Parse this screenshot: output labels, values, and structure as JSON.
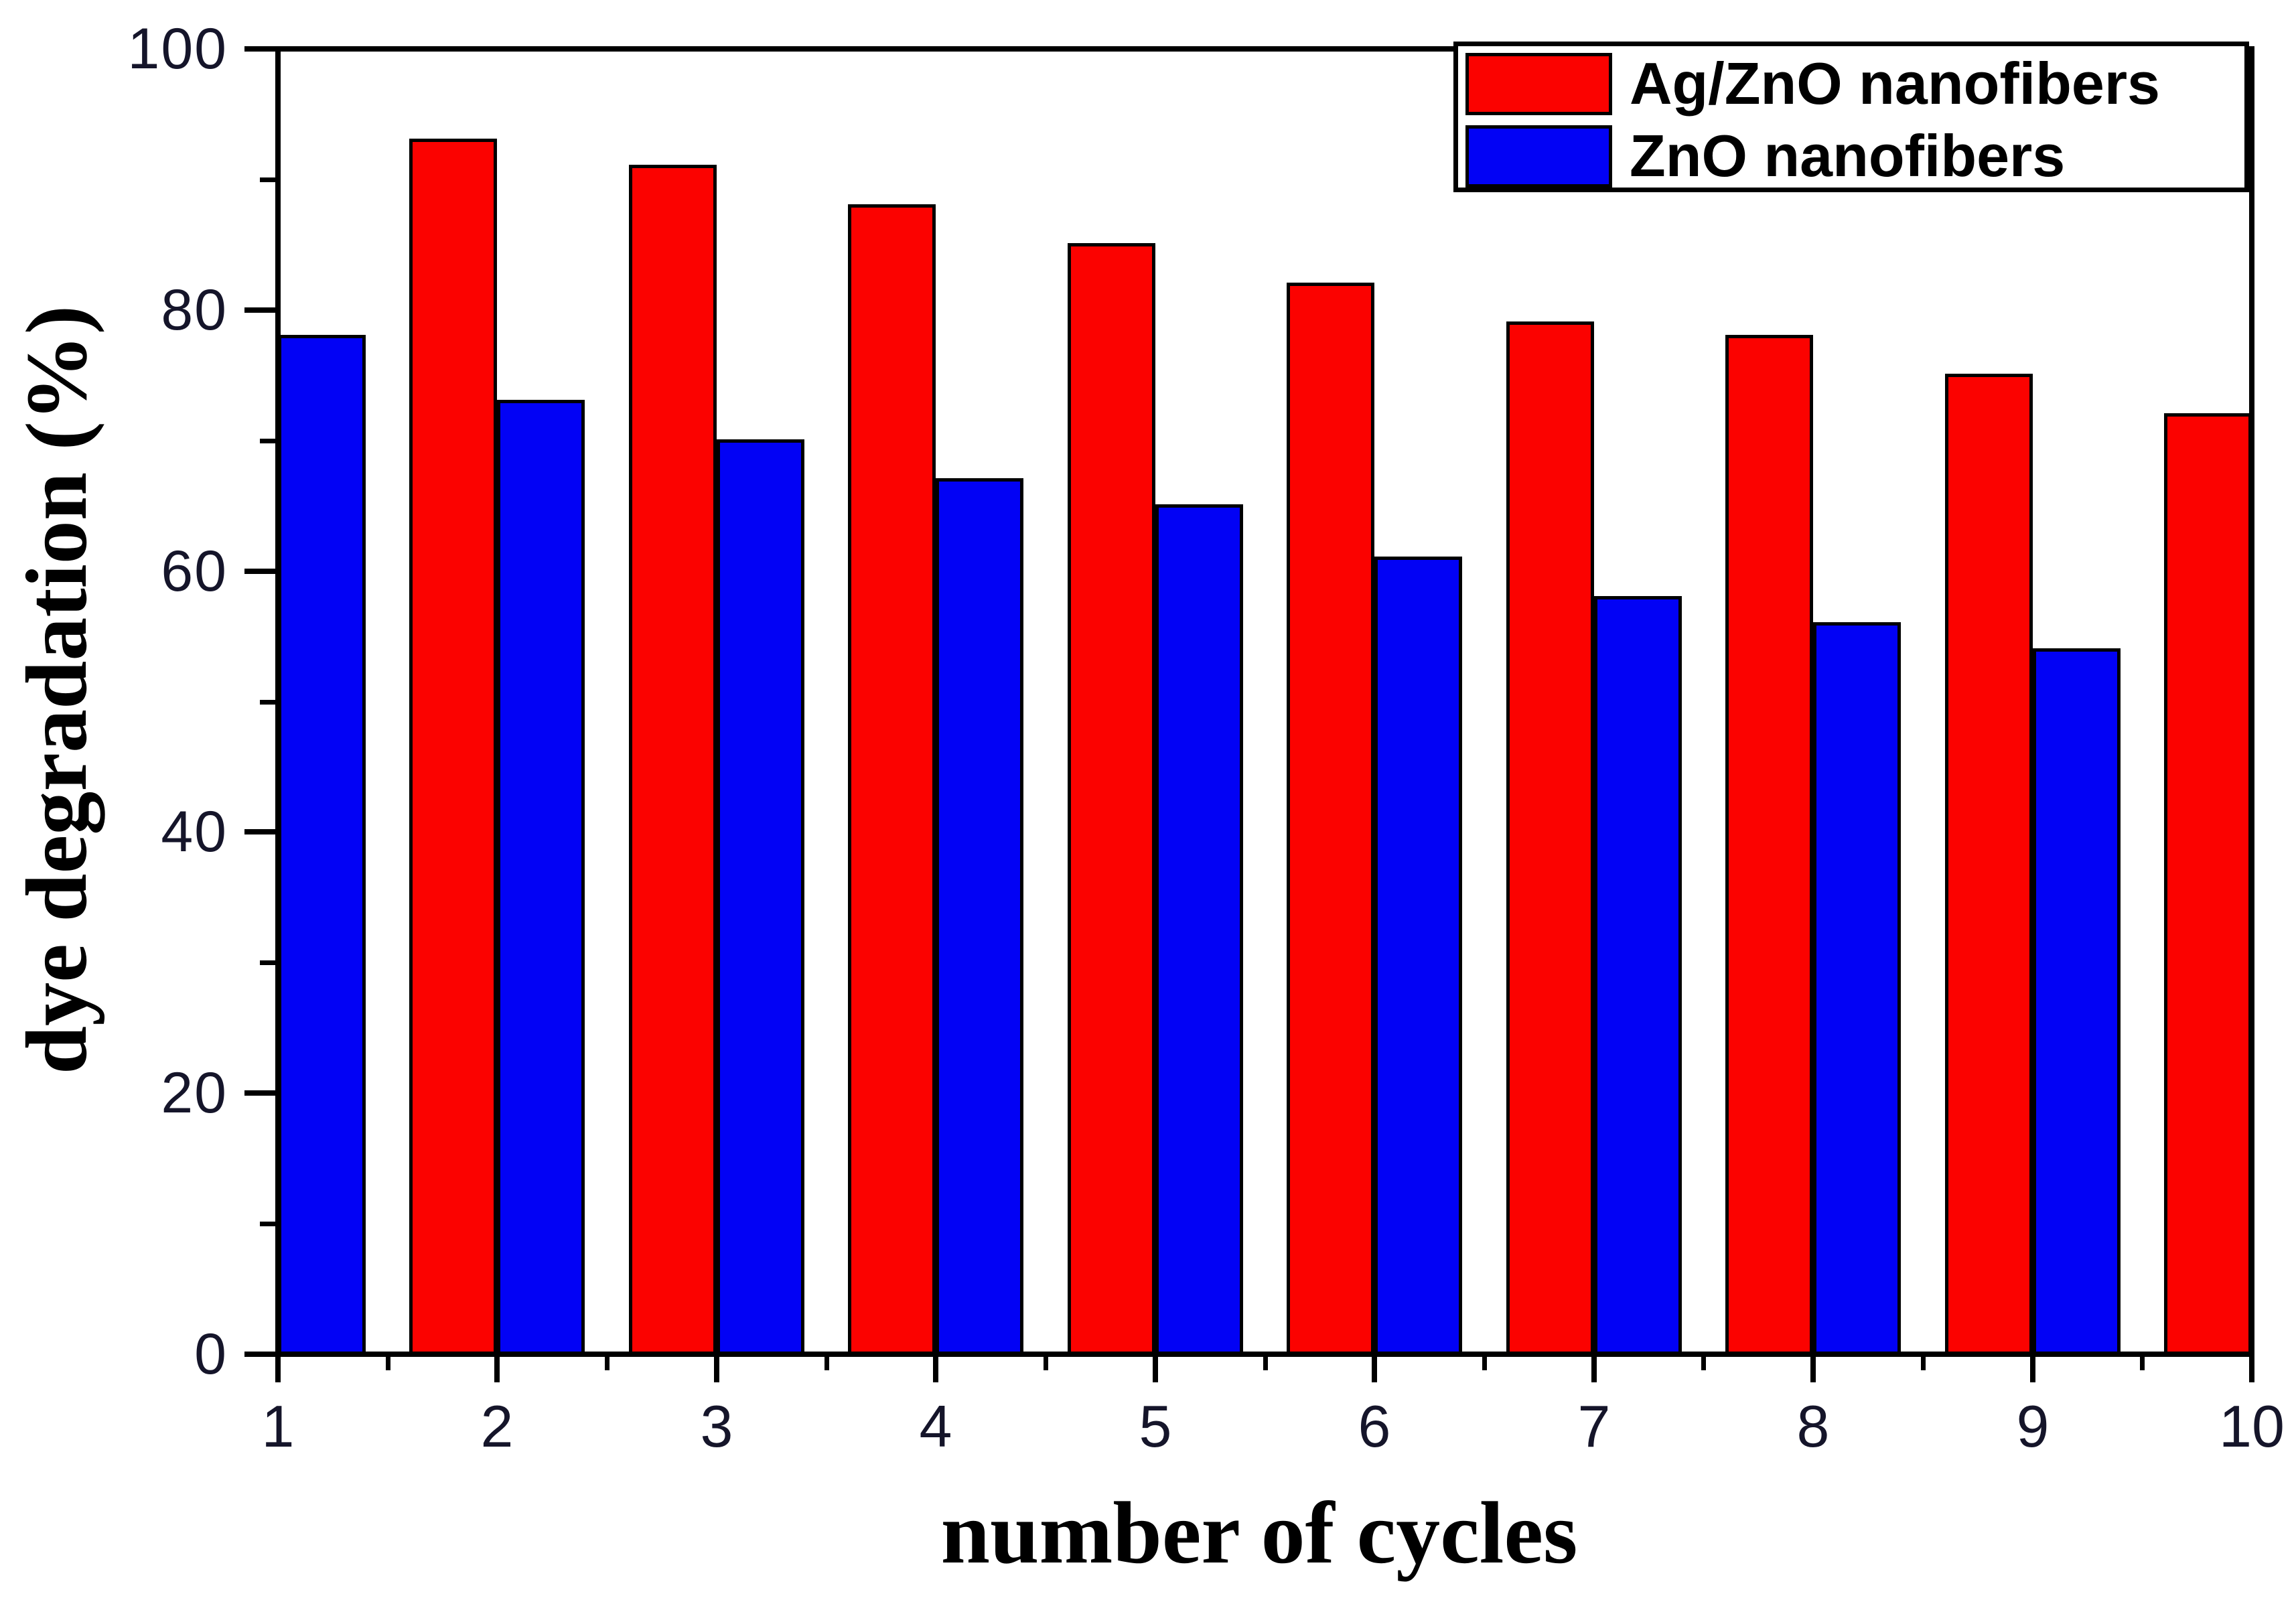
{
  "chart_data": {
    "type": "bar",
    "title": "",
    "xlabel": "number of cycles",
    "ylabel": "dye degradation (%)",
    "categories": [
      1,
      2,
      3,
      4,
      5,
      6,
      7,
      8,
      9,
      10
    ],
    "series": [
      {
        "name": "Ag/ZnO nanofibers",
        "color": "#fb0200",
        "values": [
          null,
          93,
          91,
          88,
          85,
          82,
          79,
          78,
          75,
          72
        ],
        "note_visible_cycles": "cycle 1 bar clipped outside axis range"
      },
      {
        "name": "ZnO nanofibers",
        "color": "#0202f5",
        "values": [
          78,
          73,
          70,
          67,
          65,
          61,
          58,
          56,
          54,
          null
        ],
        "note_visible_cycles": "cycle 10 bar clipped outside axis range"
      }
    ],
    "xlim": [
      1,
      10
    ],
    "ylim": [
      0,
      100
    ],
    "grid": "off",
    "legend_position": "top-right",
    "y_major_ticks": [
      0,
      20,
      40,
      60,
      80,
      100
    ],
    "y_tick_labels": [
      "0",
      "20",
      "40",
      "60",
      "80",
      "100"
    ],
    "y_minor_ticks": [
      10,
      30,
      50,
      70,
      90
    ],
    "x_major_ticks": [
      1,
      2,
      3,
      4,
      5,
      6,
      7,
      8,
      9,
      10
    ],
    "x_tick_labels": [
      "1",
      "2",
      "3",
      "4",
      "5",
      "6",
      "7",
      "8",
      "9",
      "10"
    ],
    "x_minor_ticks": [
      1.5,
      2.5,
      3.5,
      4.5,
      5.5,
      6.5,
      7.5,
      8.5,
      9.5
    ],
    "axis_color": "#000000",
    "tick_label_color": "#15152a",
    "background_color": "#ffffff"
  }
}
